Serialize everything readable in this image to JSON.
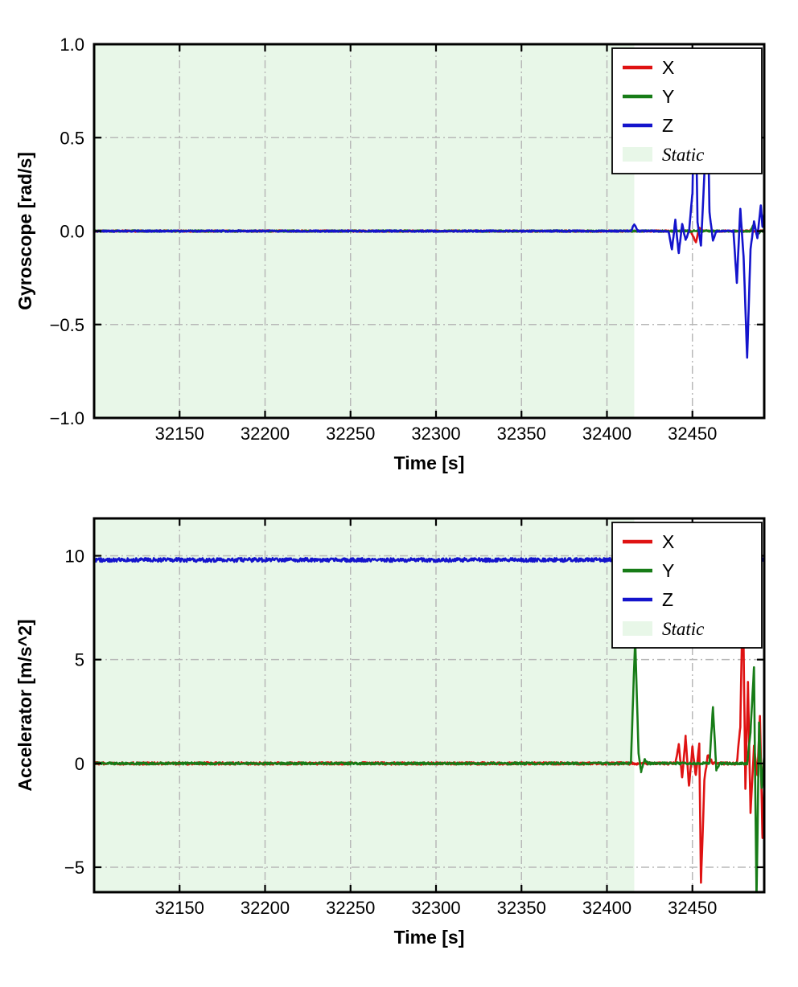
{
  "figure": {
    "background": "#ffffff"
  },
  "chart_data": [
    {
      "type": "line",
      "title": "",
      "xlabel": "Time [s]",
      "ylabel": "Gyroscope [rad/s]",
      "xlim": [
        32100,
        32492
      ],
      "ylim": [
        -1.0,
        1.0
      ],
      "xticks": [
        32150,
        32200,
        32250,
        32300,
        32350,
        32400,
        32450
      ],
      "xticklabels": [
        "32150",
        "32200",
        "32250",
        "32300",
        "32350",
        "32400",
        "32450"
      ],
      "yticks": [
        -1.0,
        -0.5,
        0.0,
        0.5,
        1.0
      ],
      "yticklabels": [
        "−1.0",
        "−0.5",
        "0.0",
        "0.5",
        "1.0"
      ],
      "grid": true,
      "grid_color": "#b8b8b8",
      "legend": {
        "position": "upper right",
        "entries": [
          "X",
          "Y",
          "Z",
          "Static"
        ]
      },
      "static_region": {
        "label": "Static",
        "x_start": 32100,
        "x_end": 32416,
        "color": "#e8f7e8"
      },
      "series": [
        {
          "name": "X",
          "color": "#df1212",
          "noise": 0.004,
          "points": [
            [
              32100,
              0
            ],
            [
              32449,
              0
            ],
            [
              32452,
              -0.06
            ],
            [
              32454,
              0.02
            ],
            [
              32456,
              0
            ],
            [
              32492,
              0
            ]
          ]
        },
        {
          "name": "Y",
          "color": "#177c17",
          "noise": 0.004,
          "points": [
            [
              32100,
              0
            ],
            [
              32484,
              0
            ],
            [
              32486,
              0.04
            ],
            [
              32488,
              -0.02
            ],
            [
              32490,
              0
            ],
            [
              32492,
              0
            ]
          ]
        },
        {
          "name": "Z",
          "color": "#1414cc",
          "noise": 0.004,
          "points": [
            [
              32100,
              0
            ],
            [
              32414,
              0
            ],
            [
              32416,
              0.035
            ],
            [
              32418,
              0
            ],
            [
              32436,
              0
            ],
            [
              32438,
              -0.1
            ],
            [
              32440,
              0.06
            ],
            [
              32442,
              -0.12
            ],
            [
              32444,
              0.04
            ],
            [
              32446,
              -0.05
            ],
            [
              32448,
              0
            ],
            [
              32450,
              0.2
            ],
            [
              32451.5,
              0.93
            ],
            [
              32453,
              0.05
            ],
            [
              32455,
              -0.08
            ],
            [
              32457,
              0.3
            ],
            [
              32458.5,
              0.88
            ],
            [
              32460,
              0.1
            ],
            [
              32462,
              -0.05
            ],
            [
              32464,
              0
            ],
            [
              32474,
              0
            ],
            [
              32476,
              -0.28
            ],
            [
              32478,
              0.12
            ],
            [
              32480,
              -0.15
            ],
            [
              32482,
              -0.68
            ],
            [
              32484,
              -0.1
            ],
            [
              32486,
              0.05
            ],
            [
              32488,
              -0.04
            ],
            [
              32490,
              0.14
            ],
            [
              32491,
              0.02
            ],
            [
              32492,
              0.1
            ]
          ]
        }
      ]
    },
    {
      "type": "line",
      "title": "",
      "xlabel": "Time [s]",
      "ylabel": "Accelerator [m/s^2]",
      "xlim": [
        32100,
        32492
      ],
      "ylim": [
        -6.2,
        11.8
      ],
      "xticks": [
        32150,
        32200,
        32250,
        32300,
        32350,
        32400,
        32450
      ],
      "xticklabels": [
        "32150",
        "32200",
        "32250",
        "32300",
        "32350",
        "32400",
        "32450"
      ],
      "yticks": [
        -5,
        0,
        5,
        10
      ],
      "yticklabels": [
        "−5",
        "0",
        "5",
        "10"
      ],
      "grid": true,
      "grid_color": "#b8b8b8",
      "legend": {
        "position": "upper right",
        "entries": [
          "X",
          "Y",
          "Z",
          "Static"
        ]
      },
      "static_region": {
        "label": "Static",
        "x_start": 32100,
        "x_end": 32416,
        "color": "#e8f7e8"
      },
      "series": [
        {
          "name": "X",
          "color": "#df1212",
          "noise": 0.06,
          "points": [
            [
              32100,
              0
            ],
            [
              32440,
              0
            ],
            [
              32442,
              0.9
            ],
            [
              32444,
              -0.7
            ],
            [
              32446,
              1.3
            ],
            [
              32448,
              -1.1
            ],
            [
              32450,
              0.8
            ],
            [
              32452,
              -0.6
            ],
            [
              32454,
              1.0
            ],
            [
              32455,
              -5.7
            ],
            [
              32456,
              -3.4
            ],
            [
              32457,
              -0.8
            ],
            [
              32459,
              0.4
            ],
            [
              32462,
              0
            ],
            [
              32476,
              0
            ],
            [
              32478,
              1.8
            ],
            [
              32479.5,
              8.3
            ],
            [
              32481,
              -1.2
            ],
            [
              32482.5,
              3.9
            ],
            [
              32484,
              -2.4
            ],
            [
              32486,
              0.8
            ],
            [
              32488,
              -0.6
            ],
            [
              32489.5,
              2.3
            ],
            [
              32491,
              -3.6
            ],
            [
              32492,
              -1.0
            ]
          ]
        },
        {
          "name": "Y",
          "color": "#177c17",
          "noise": 0.05,
          "points": [
            [
              32100,
              0
            ],
            [
              32414,
              0
            ],
            [
              32416.5,
              6.0
            ],
            [
              32418.5,
              0.5
            ],
            [
              32420,
              -0.4
            ],
            [
              32422,
              0.2
            ],
            [
              32424,
              0
            ],
            [
              32460,
              0
            ],
            [
              32462,
              2.7
            ],
            [
              32464,
              -0.3
            ],
            [
              32466,
              0
            ],
            [
              32482,
              0
            ],
            [
              32484,
              1.5
            ],
            [
              32486,
              4.6
            ],
            [
              32487.5,
              -6.6
            ],
            [
              32489,
              2.0
            ],
            [
              32490.5,
              -1.2
            ],
            [
              32492,
              0.4
            ]
          ]
        },
        {
          "name": "Z",
          "color": "#1414cc",
          "noise": 0.09,
          "points": [
            [
              32100,
              9.8
            ],
            [
              32492,
              9.8
            ]
          ]
        }
      ]
    }
  ]
}
